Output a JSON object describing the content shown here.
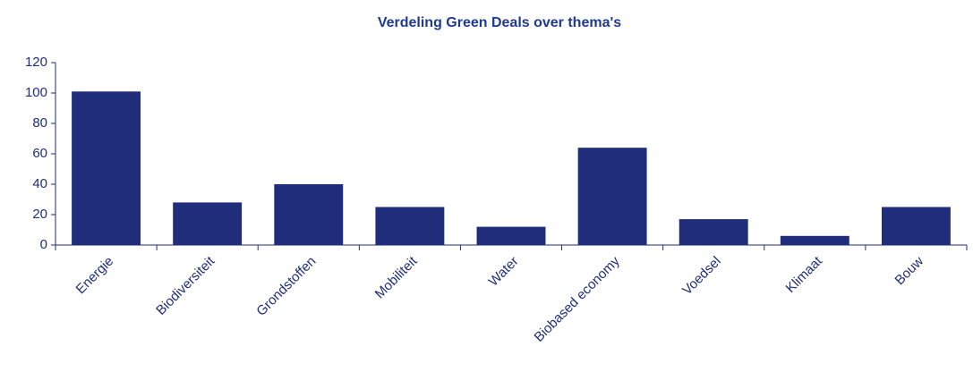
{
  "chart_data": {
    "type": "bar",
    "title": "Verdeling Green Deals over thema's",
    "categories": [
      "Energie",
      "Biodiversiteit",
      "Grondstoffen",
      "Mobiliteit",
      "Water",
      "Biobased economy",
      "Voedsel",
      "Klimaat",
      "Bouw"
    ],
    "values": [
      101,
      28,
      40,
      25,
      12,
      64,
      17,
      6,
      25
    ],
    "color": "#1f2d7b",
    "ylim": [
      0,
      120
    ],
    "yticks": [
      0,
      20,
      40,
      60,
      80,
      100,
      120
    ],
    "grid": false
  }
}
